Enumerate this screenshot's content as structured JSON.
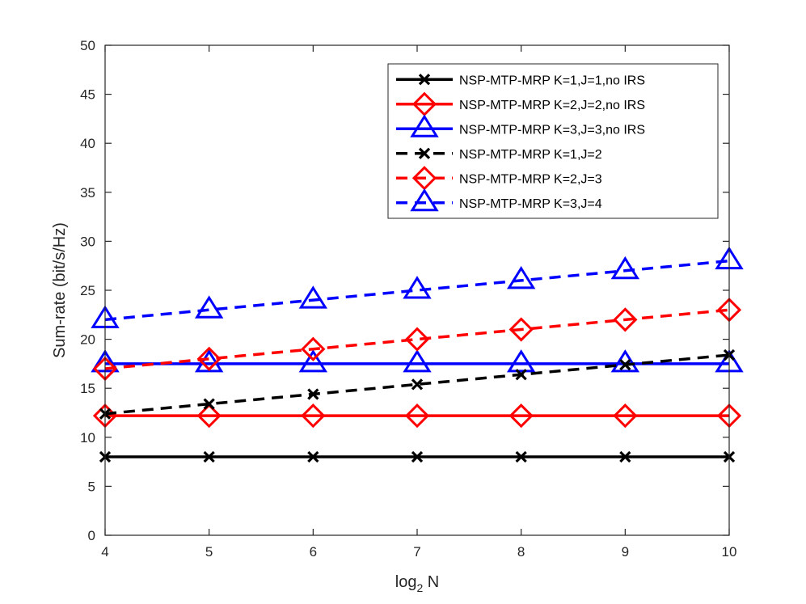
{
  "chart_data": {
    "type": "line",
    "title": "",
    "xlabel": "log",
    "xlabel_sub": "2",
    "xlabel_suffix": " N",
    "ylabel": "Sum-rate (bit/s/Hz)",
    "xlim": [
      4,
      10
    ],
    "ylim": [
      0,
      50
    ],
    "xticks": [
      "4",
      "5",
      "6",
      "7",
      "8",
      "9",
      "10"
    ],
    "yticks": [
      "0",
      "5",
      "10",
      "15",
      "20",
      "25",
      "30",
      "35",
      "40",
      "45",
      "50"
    ],
    "grid": false,
    "legend_position": "top-right",
    "x": [
      4,
      5,
      6,
      7,
      8,
      9,
      10
    ],
    "series": [
      {
        "name": "NSP-MTP-MRP K=1,J=1,no IRS",
        "color": "#000000",
        "dash": "solid",
        "marker": "x",
        "values": [
          8,
          8,
          8,
          8,
          8,
          8,
          8
        ]
      },
      {
        "name": "NSP-MTP-MRP K=2,J=2,no IRS",
        "color": "#ff0000",
        "dash": "solid",
        "marker": "diamond",
        "values": [
          12.2,
          12.2,
          12.2,
          12.2,
          12.2,
          12.2,
          12.2
        ]
      },
      {
        "name": "NSP-MTP-MRP K=3,J=3,no IRS",
        "color": "#0000ff",
        "dash": "solid",
        "marker": "triangle",
        "values": [
          17.5,
          17.5,
          17.5,
          17.5,
          17.5,
          17.5,
          17.5
        ]
      },
      {
        "name": "NSP-MTP-MRP K=1,J=2",
        "color": "#000000",
        "dash": "dashed",
        "marker": "x",
        "values": [
          12.4,
          13.4,
          14.4,
          15.4,
          16.4,
          17.4,
          18.4
        ]
      },
      {
        "name": "NSP-MTP-MRP K=2,J=3",
        "color": "#ff0000",
        "dash": "dashed",
        "marker": "diamond",
        "values": [
          17,
          18,
          19,
          20,
          21,
          22,
          23
        ]
      },
      {
        "name": "NSP-MTP-MRP K=3,J=4",
        "color": "#0000ff",
        "dash": "dashed",
        "marker": "triangle",
        "values": [
          22,
          23,
          24,
          25,
          26,
          27,
          28
        ]
      }
    ]
  }
}
